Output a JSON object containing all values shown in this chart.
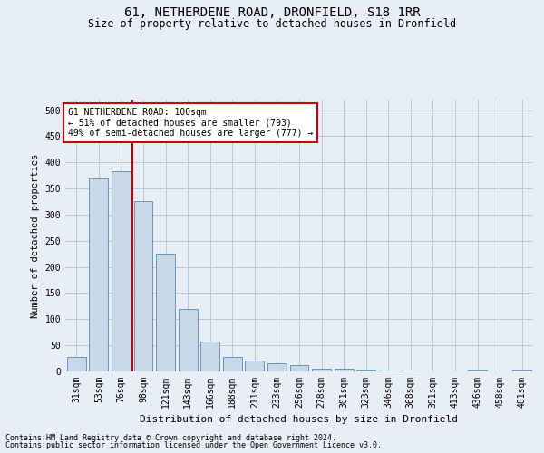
{
  "title": "61, NETHERDENE ROAD, DRONFIELD, S18 1RR",
  "subtitle": "Size of property relative to detached houses in Dronfield",
  "xlabel": "Distribution of detached houses by size in Dronfield",
  "ylabel": "Number of detached properties",
  "footer_line1": "Contains HM Land Registry data © Crown copyright and database right 2024.",
  "footer_line2": "Contains public sector information licensed under the Open Government Licence v3.0.",
  "bin_labels": [
    "31sqm",
    "53sqm",
    "76sqm",
    "98sqm",
    "121sqm",
    "143sqm",
    "166sqm",
    "188sqm",
    "211sqm",
    "233sqm",
    "256sqm",
    "278sqm",
    "301sqm",
    "323sqm",
    "346sqm",
    "368sqm",
    "391sqm",
    "413sqm",
    "436sqm",
    "458sqm",
    "481sqm"
  ],
  "bar_values": [
    27,
    370,
    383,
    325,
    225,
    120,
    57,
    27,
    20,
    15,
    13,
    6,
    5,
    3,
    1,
    1,
    0,
    0,
    4,
    0,
    4
  ],
  "bar_color": "#c8d8e8",
  "bar_edge_color": "#5a8ab0",
  "grid_color": "#c0c8d8",
  "background_color": "#e8eef5",
  "red_line_x": 2.5,
  "red_line_color": "#cc0000",
  "annotation_text": "61 NETHERDENE ROAD: 100sqm\n← 51% of detached houses are smaller (793)\n49% of semi-detached houses are larger (777) →",
  "annotation_box_color": "#ffffff",
  "annotation_box_edge": "#cc0000",
  "ylim": [
    0,
    520
  ],
  "yticks": [
    0,
    50,
    100,
    150,
    200,
    250,
    300,
    350,
    400,
    450,
    500
  ],
  "title_fontsize": 10,
  "subtitle_fontsize": 8.5,
  "ylabel_fontsize": 7.5,
  "xlabel_fontsize": 8,
  "tick_fontsize": 7,
  "annot_fontsize": 7,
  "footer_fontsize": 6
}
